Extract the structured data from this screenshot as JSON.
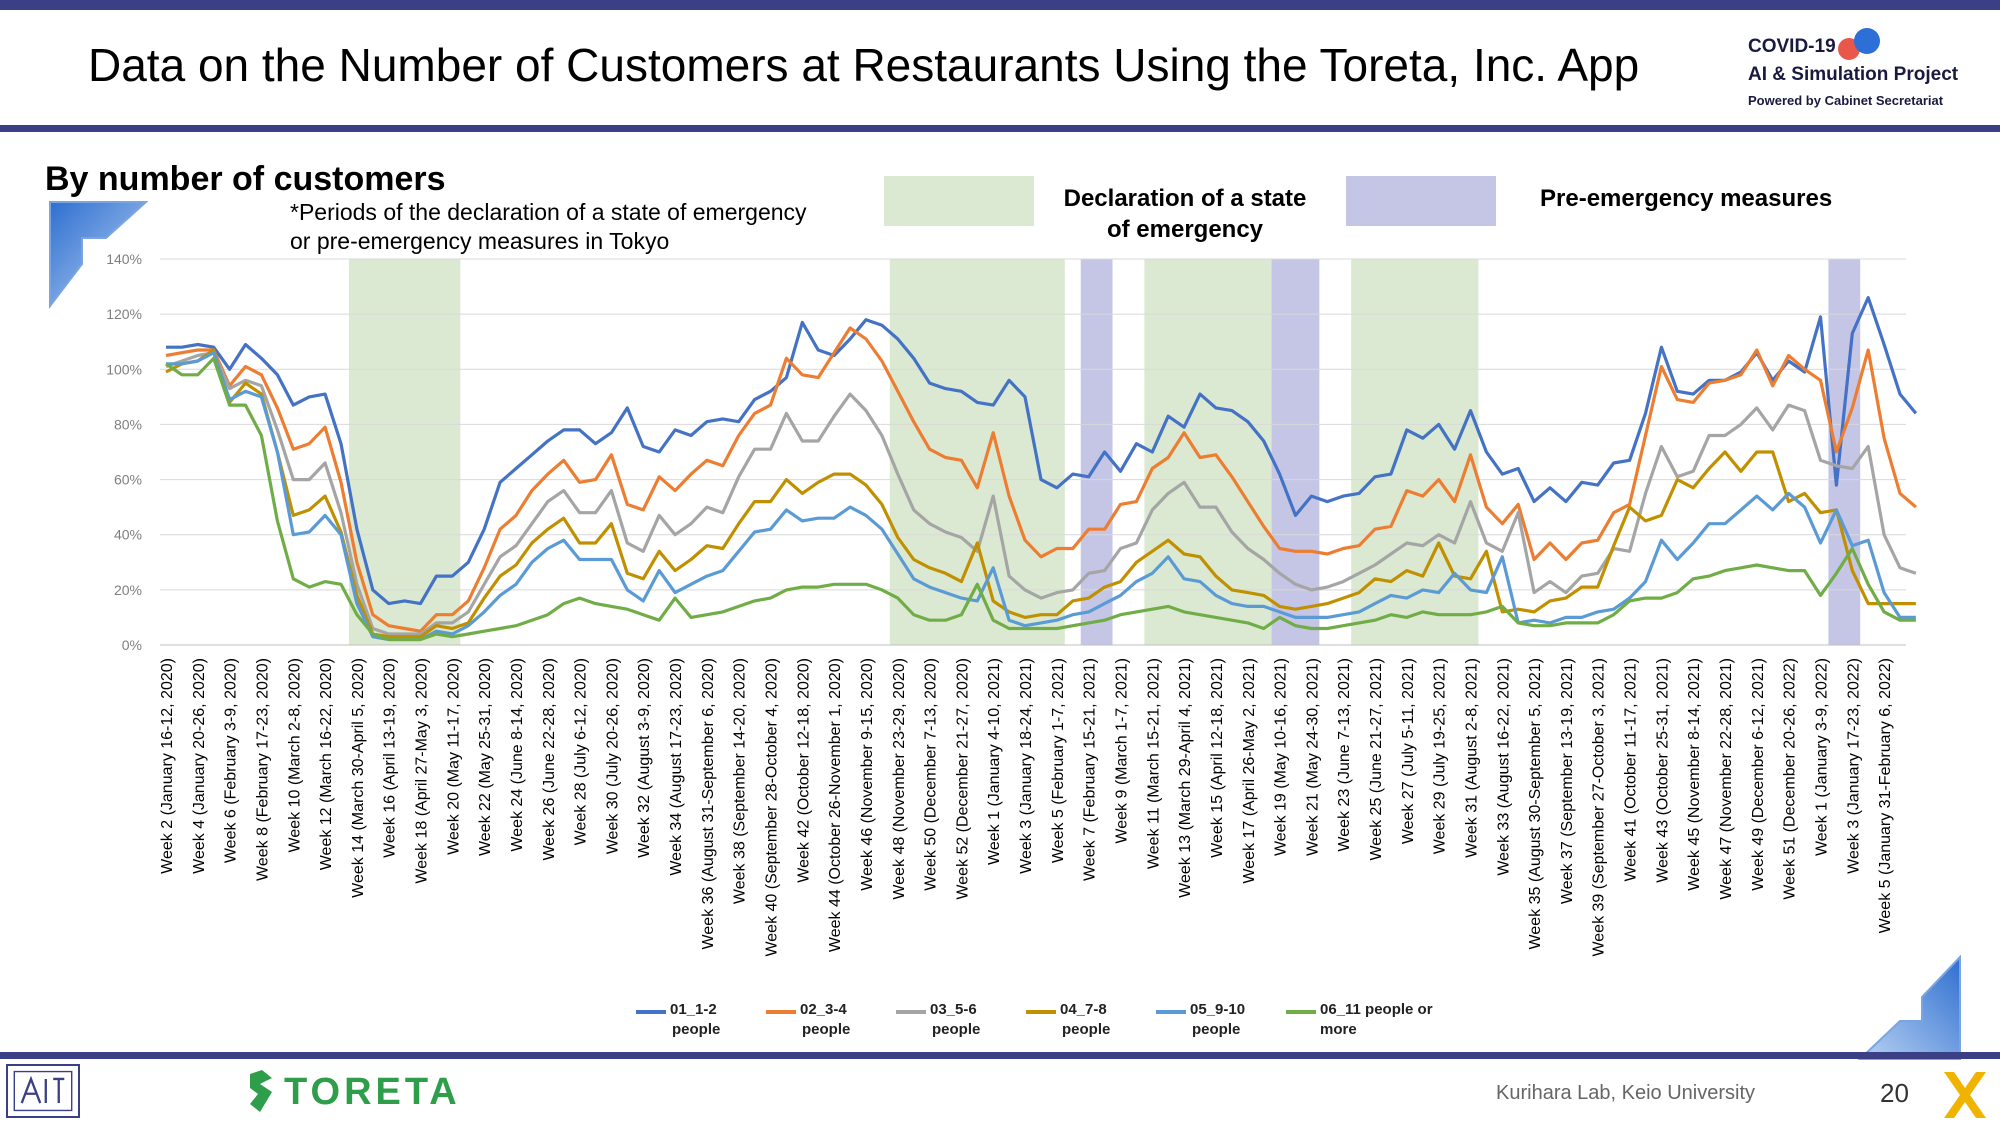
{
  "header": {
    "title": "Data on the Number of Customers at Restaurants Using the Toreta, Inc. App",
    "project_logo_line1": "COVID-19",
    "project_logo_line2": "AI & Simulation Project",
    "project_logo_line3": "Powered by Cabinet Secretariat"
  },
  "section": {
    "subtitle": "By number of customers",
    "note_line1": "*Periods of the declaration of a state of emergency",
    "note_line2": "or pre-emergency measures in Tokyo",
    "legend_emergency_line1": "Declaration of a state",
    "legend_emergency_line2": "of emergency",
    "legend_pre_emergency": "Pre-emergency measures"
  },
  "footer": {
    "brand": "TORETA",
    "lab": "Kurihara Lab, Keio University",
    "page_number": "20"
  },
  "colors": {
    "series_1_2": "#4472c4",
    "series_3_4": "#ed7d31",
    "series_5_6": "#a5a5a5",
    "series_7_8": "#c09000",
    "series_9_10": "#5b9bd5",
    "series_11": "#70ad47",
    "emergency_shade": "#dbe9d2",
    "pre_emergency_shade": "#c5c5e6",
    "brand_bar": "#3b3f86",
    "toreta_green": "#2f9e4a"
  },
  "chart_data": {
    "type": "line",
    "ylim": [
      0,
      140
    ],
    "yticks": [
      "0%",
      "20%",
      "40%",
      "60%",
      "80%",
      "100%",
      "120%",
      "140%"
    ],
    "grid": true,
    "legend_position": "bottom",
    "x_count": 110,
    "x_tick_labels": [
      "Week 2 (January 16-12, 2020)",
      "Week 4 (January 20-26, 2020)",
      "Week 6 (February 3-9, 2020)",
      "Week 8 (February 17-23, 2020)",
      "Week 10 (March 2-8, 2020)",
      "Week 12 (March 16-22, 2020)",
      "Week 14 (March 30-April 5, 2020)",
      "Week 16 (April 13-19, 2020)",
      "Week 18 (April 27-May 3, 2020)",
      "Week 20 (May 11-17, 2020)",
      "Week 22 (May 25-31, 2020)",
      "Week 24 (June 8-14, 2020)",
      "Week 26 (June 22-28, 2020)",
      "Week 28 (July 6-12, 2020)",
      "Week 30 (July 20-26, 2020)",
      "Week 32 (August 3-9, 2020)",
      "Week 34 (August 17-23, 2020)",
      "Week 36 (August 31-September 6, 2020)",
      "Week 38 (September 14-20, 2020)",
      "Week 40 (September 28-October 4, 2020)",
      "Week 42 (October 12-18, 2020)",
      "Week 44 (October 26-November 1, 2020)",
      "Week 46 (November 9-15, 2020)",
      "Week 48 (November 23-29, 2020)",
      "Week 50 (December 7-13, 2020)",
      "Week 52 (December 21-27, 2020)",
      "Week 1 (January 4-10, 2021)",
      "Week 3 (January 18-24, 2021)",
      "Week 5 (February 1-7, 2021)",
      "Week 7 (February 15-21, 2021)",
      "Week 9 (March 1-7, 2021)",
      "Week 11 (March 15-21, 2021)",
      "Week 13 (March 29-April 4, 2021)",
      "Week 15 (April 12-18, 2021)",
      "Week 17 (April 26-May 2, 2021)",
      "Week 19 (May 10-16, 2021)",
      "Week 21 (May 24-30, 2021)",
      "Week 23 (June 7-13, 2021)",
      "Week 25 (June 21-27, 2021)",
      "Week 27 (July 5-11, 2021)",
      "Week 29 (July 19-25, 2021)",
      "Week 31 (August 2-8, 2021)",
      "Week 33 (August 16-22, 2021)",
      "Week 35 (August 30-September 5, 2021)",
      "Week 37 (September 13-19, 2021)",
      "Week 39 (September 27-October 3, 2021)",
      "Week 41 (October 11-17, 2021)",
      "Week 43 (October 25-31, 2021)",
      "Week 45 (November 8-14, 2021)",
      "Week 47 (November 22-28, 2021)",
      "Week 49 (December 6-12, 2021)",
      "Week 51 (December 20-26, 2022)",
      "Week 1 (January 3-9, 2022)",
      "Week 3 (January 17-23, 2022)",
      "Week 5 (January 31-February 6, 2022)"
    ],
    "emergency_periods": [
      [
        12,
        18
      ],
      [
        46,
        56
      ],
      [
        62,
        70
      ],
      [
        75,
        82
      ]
    ],
    "pre_emergency_periods": [
      [
        58,
        59
      ],
      [
        70,
        72
      ],
      [
        105,
        106
      ]
    ],
    "series": [
      {
        "name": "01_1-2 people",
        "values": [
          108,
          108,
          109,
          108,
          100,
          109,
          104,
          98,
          87,
          90,
          91,
          73,
          42,
          20,
          15,
          16,
          15,
          25,
          25,
          30,
          42,
          59,
          64,
          69,
          74,
          78,
          78,
          73,
          77,
          86,
          72,
          70,
          78,
          76,
          81,
          82,
          81,
          89,
          92,
          97,
          117,
          107,
          105,
          111,
          118,
          116,
          111,
          104,
          95,
          93,
          92,
          88,
          87,
          96,
          90,
          60,
          57,
          62,
          61,
          70,
          63,
          73,
          70,
          83,
          79,
          91,
          86,
          85,
          81,
          74,
          62,
          47,
          54,
          52,
          54,
          55,
          61,
          62,
          78,
          75,
          80,
          71,
          85,
          70,
          62,
          64,
          52,
          57,
          52,
          59,
          58,
          66,
          67,
          84,
          108,
          92,
          91,
          96,
          96,
          99,
          106,
          96,
          103,
          99,
          119,
          58,
          113,
          126,
          109,
          91,
          84
        ]
      },
      {
        "name": "02_3-4 people",
        "values": [
          105,
          106,
          107,
          107,
          94,
          101,
          98,
          86,
          71,
          73,
          79,
          59,
          30,
          11,
          7,
          6,
          5,
          11,
          11,
          16,
          28,
          42,
          47,
          56,
          62,
          67,
          59,
          60,
          69,
          51,
          49,
          61,
          56,
          62,
          67,
          65,
          76,
          84,
          87,
          104,
          98,
          97,
          106,
          115,
          111,
          103,
          92,
          81,
          71,
          68,
          67,
          57,
          77,
          54,
          38,
          32,
          35,
          35,
          42,
          42,
          51,
          52,
          64,
          68,
          77,
          68,
          69,
          61,
          52,
          43,
          35,
          34,
          34,
          33,
          35,
          36,
          42,
          43,
          56,
          54,
          60,
          52,
          69,
          50,
          44,
          51,
          31,
          37,
          31,
          37,
          38,
          48,
          51,
          76,
          101,
          89,
          88,
          95,
          96,
          98,
          107,
          94,
          105,
          100,
          96,
          70,
          86,
          107,
          75,
          55,
          50
        ]
      },
      {
        "name": "03_5-6 people",
        "values": [
          101,
          103,
          105,
          106,
          93,
          96,
          94,
          78,
          60,
          60,
          66,
          48,
          22,
          6,
          4,
          4,
          4,
          8,
          8,
          12,
          22,
          32,
          36,
          44,
          52,
          56,
          48,
          48,
          56,
          37,
          34,
          47,
          40,
          44,
          50,
          48,
          61,
          71,
          71,
          84,
          74,
          74,
          83,
          91,
          85,
          76,
          62,
          49,
          44,
          41,
          39,
          34,
          54,
          25,
          20,
          17,
          19,
          20,
          26,
          27,
          35,
          37,
          49,
          55,
          59,
          50,
          50,
          41,
          35,
          31,
          26,
          22,
          20,
          21,
          23,
          26,
          29,
          33,
          37,
          36,
          40,
          37,
          52,
          37,
          34,
          48,
          19,
          23,
          19,
          25,
          26,
          35,
          34,
          55,
          72,
          61,
          63,
          76,
          76,
          80,
          86,
          78,
          87,
          85,
          67,
          65,
          64,
          72,
          40,
          28,
          26
        ]
      },
      {
        "name": "04_7-8 people",
        "values": [
          99,
          102,
          103,
          107,
          88,
          95,
          91,
          70,
          47,
          49,
          54,
          41,
          18,
          4,
          3,
          3,
          3,
          7,
          6,
          8,
          17,
          25,
          29,
          37,
          42,
          46,
          37,
          37,
          44,
          26,
          24,
          34,
          27,
          31,
          36,
          35,
          44,
          52,
          52,
          60,
          55,
          59,
          62,
          62,
          58,
          51,
          39,
          31,
          28,
          26,
          23,
          37,
          16,
          12,
          10,
          11,
          11,
          16,
          17,
          21,
          23,
          30,
          34,
          38,
          33,
          32,
          25,
          20,
          19,
          18,
          14,
          13,
          14,
          15,
          17,
          19,
          24,
          23,
          27,
          25,
          37,
          25,
          24,
          34,
          12,
          13,
          12,
          16,
          17,
          21,
          21,
          36,
          50,
          45,
          47,
          60,
          57,
          64,
          70,
          63,
          70,
          70,
          52,
          55,
          48,
          49,
          27,
          15,
          15,
          15,
          15
        ]
      },
      {
        "name": "05_9-10 people",
        "values": [
          102,
          102,
          103,
          106,
          89,
          92,
          90,
          70,
          40,
          41,
          47,
          40,
          15,
          3,
          2,
          2,
          2,
          5,
          4,
          7,
          12,
          18,
          22,
          30,
          35,
          38,
          31,
          31,
          31,
          20,
          16,
          27,
          19,
          22,
          25,
          27,
          34,
          41,
          42,
          49,
          45,
          46,
          46,
          50,
          47,
          42,
          33,
          24,
          21,
          19,
          17,
          16,
          28,
          9,
          7,
          8,
          9,
          11,
          12,
          15,
          18,
          23,
          26,
          32,
          24,
          23,
          18,
          15,
          14,
          14,
          12,
          10,
          10,
          10,
          11,
          12,
          15,
          18,
          17,
          20,
          19,
          26,
          20,
          19,
          32,
          8,
          9,
          8,
          10,
          10,
          12,
          13,
          17,
          23,
          38,
          31,
          37,
          44,
          44,
          49,
          54,
          49,
          55,
          50,
          37,
          49,
          36,
          38,
          19,
          10,
          10
        ]
      },
      {
        "name": "06_11 people or more",
        "values": [
          102,
          98,
          98,
          104,
          87,
          87,
          76,
          45,
          24,
          21,
          23,
          22,
          11,
          4,
          2,
          2,
          2,
          4,
          3,
          4,
          5,
          6,
          7,
          9,
          11,
          15,
          17,
          15,
          14,
          13,
          11,
          9,
          17,
          10,
          11,
          12,
          14,
          16,
          17,
          20,
          21,
          21,
          22,
          22,
          22,
          20,
          17,
          11,
          9,
          9,
          11,
          22,
          9,
          6,
          6,
          6,
          6,
          7,
          8,
          9,
          11,
          12,
          13,
          14,
          12,
          11,
          10,
          9,
          8,
          6,
          10,
          7,
          6,
          6,
          7,
          8,
          9,
          11,
          10,
          12,
          11,
          11,
          11,
          12,
          14,
          8,
          7,
          7,
          8,
          8,
          8,
          11,
          16,
          17,
          17,
          19,
          24,
          25,
          27,
          28,
          29,
          28,
          27,
          27,
          18,
          26,
          35,
          22,
          12,
          9,
          9
        ]
      }
    ]
  }
}
